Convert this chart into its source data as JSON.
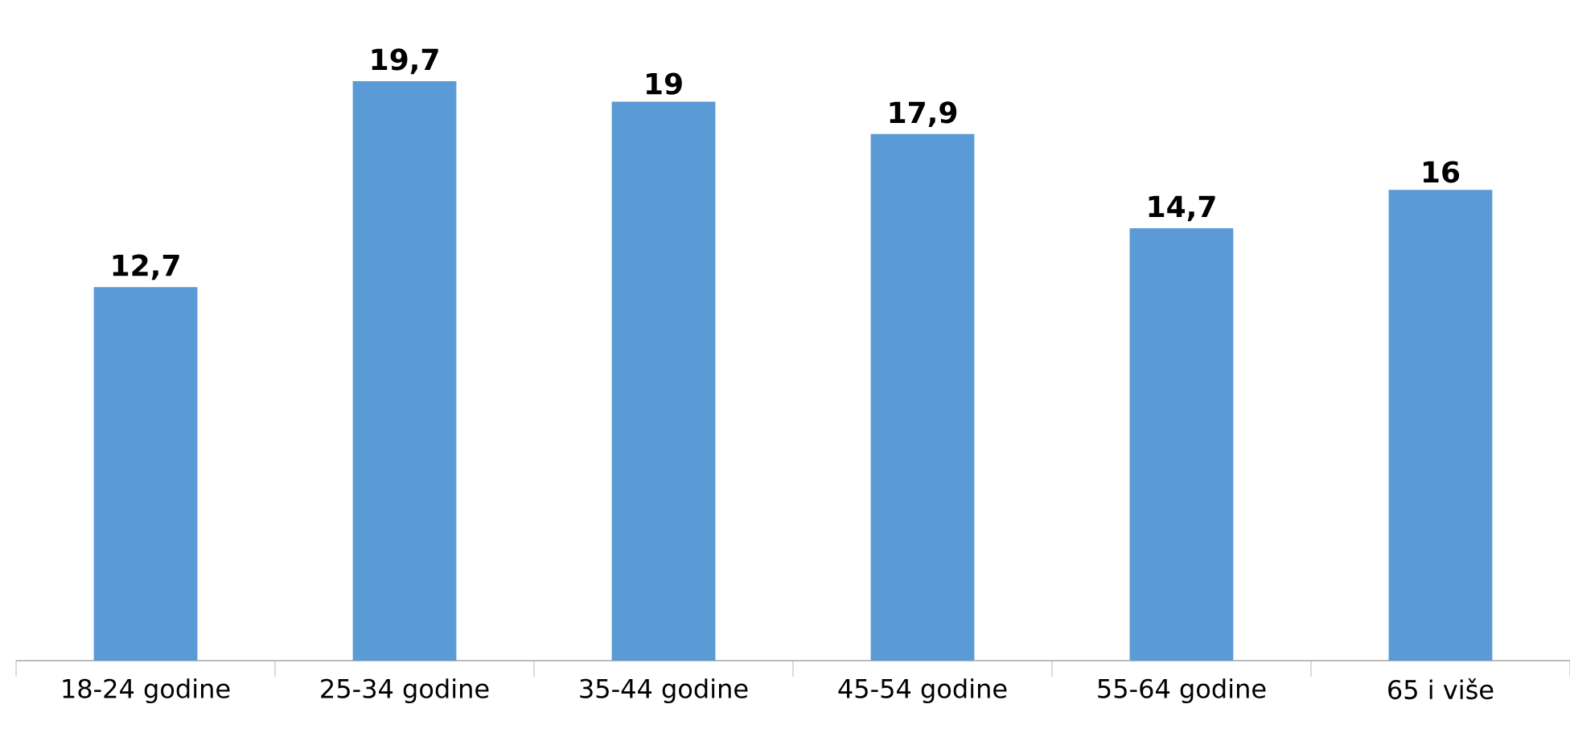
{
  "chart_data": {
    "type": "bar",
    "categories": [
      "18-24 godine",
      "25-34 godine",
      "35-44 godine",
      "45-54 godine",
      "55-64 godine",
      "65 i više"
    ],
    "values": [
      12.7,
      19.7,
      19,
      17.9,
      14.7,
      16
    ],
    "value_labels": [
      "12,7",
      "19,7",
      "19",
      "17,9",
      "14,7",
      "16"
    ],
    "color": "#5b9bd5",
    "tick_labels": "x"
  }
}
